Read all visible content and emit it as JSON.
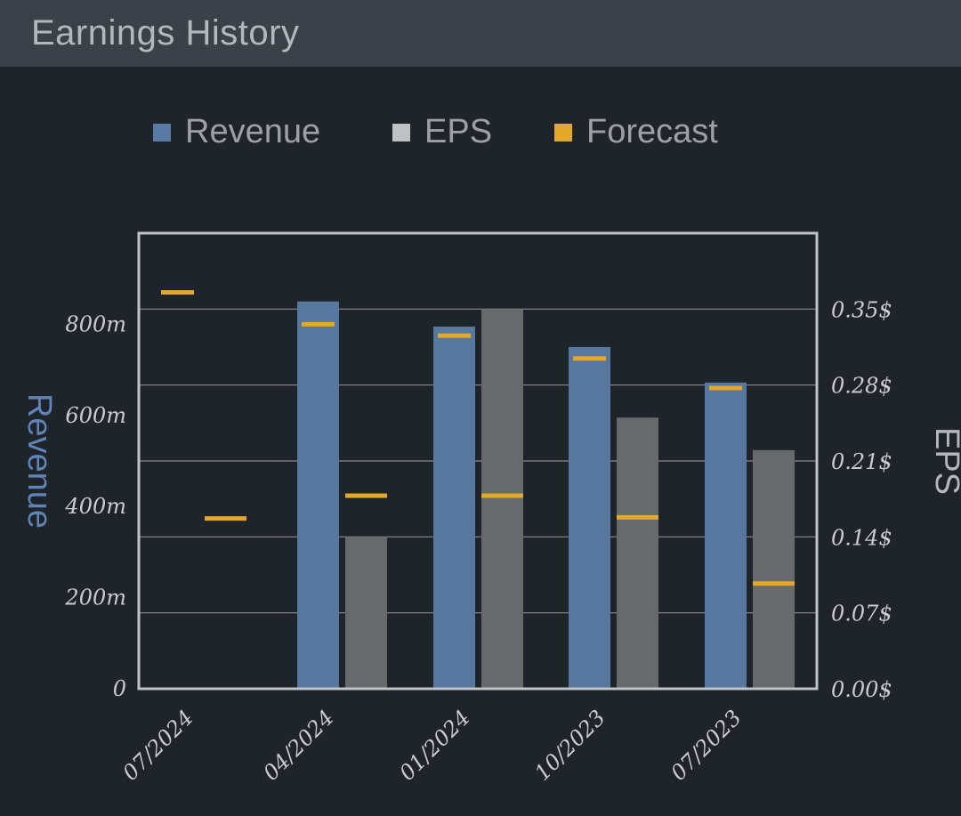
{
  "header": {
    "title": "Earnings History"
  },
  "legend": [
    {
      "label": "Revenue",
      "color": "#5a7aa6"
    },
    {
      "label": "EPS",
      "color": "#bfc1c3"
    },
    {
      "label": "Forecast",
      "color": "#e3a72a"
    }
  ],
  "chart_data": {
    "type": "bar",
    "categories": [
      "07/2024",
      "04/2024",
      "01/2024",
      "10/2023",
      "07/2023"
    ],
    "series": [
      {
        "name": "Revenue",
        "axis": "left",
        "color": "#58779f",
        "values": [
          null,
          850,
          795,
          750,
          672
        ]
      },
      {
        "name": "EPS",
        "axis": "right",
        "color": "#67696b",
        "values": [
          null,
          0.14,
          0.35,
          0.25,
          0.22
        ]
      },
      {
        "name": "Forecast",
        "kind": "marker",
        "color": "#e3a72a",
        "revenue": [
          870,
          800,
          775,
          725,
          660
        ],
        "eps": [
          0.157,
          0.178,
          0.178,
          0.158,
          0.097
        ]
      }
    ],
    "yleft": {
      "label": "Revenue",
      "ylim": [
        0,
        1000
      ],
      "ticks": [
        0,
        200,
        400,
        600,
        800
      ],
      "tick_labels": [
        "0",
        "200m",
        "400m",
        "600m",
        "800m"
      ]
    },
    "yright": {
      "label": "EPS",
      "ylim": [
        0,
        0.42
      ],
      "ticks": [
        0,
        0.07,
        0.14,
        0.21,
        0.28,
        0.35
      ],
      "tick_labels": [
        "0.00$",
        "0.07$",
        "0.14$",
        "0.21$",
        "0.28$",
        "0.35$"
      ]
    },
    "grid": true
  }
}
